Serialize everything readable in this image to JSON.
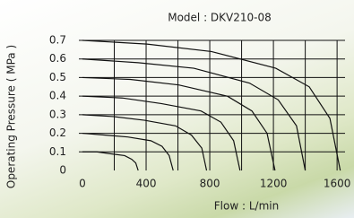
{
  "chart_data": {
    "type": "line",
    "title": "Model : DKV210-08",
    "x_label": "Flow : L/min",
    "y_label": "Operating Pressure ( MPa )",
    "xlim": [
      0,
      1650
    ],
    "xticks": [
      0,
      400,
      800,
      1200,
      1600
    ],
    "xminor": [
      200,
      600,
      1000,
      1400
    ],
    "ylim": [
      0,
      0.7
    ],
    "yticks": [
      0,
      0.1,
      0.2,
      0.3,
      0.4,
      0.5,
      0.6,
      0.7
    ],
    "grid": true,
    "series": [
      {
        "color": "#111111",
        "x": [
          0,
          90,
          175,
          265,
          310,
          335,
          350
        ],
        "values": [
          0.1,
          0.1,
          0.09,
          0.08,
          0.06,
          0.04,
          0
        ]
      },
      {
        "color": "#111111",
        "x": [
          0,
          145,
          285,
          430,
          500,
          545,
          570
        ],
        "values": [
          0.2,
          0.19,
          0.18,
          0.16,
          0.13,
          0.08,
          0
        ]
      },
      {
        "color": "#111111",
        "x": [
          0,
          195,
          390,
          585,
          685,
          750,
          780
        ],
        "values": [
          0.3,
          0.29,
          0.27,
          0.24,
          0.19,
          0.12,
          0
        ]
      },
      {
        "color": "#111111",
        "x": [
          0,
          250,
          495,
          745,
          870,
          950,
          990
        ],
        "values": [
          0.4,
          0.39,
          0.36,
          0.32,
          0.26,
          0.16,
          0
        ]
      },
      {
        "color": "#111111",
        "x": [
          0,
          300,
          605,
          910,
          1065,
          1160,
          1210
        ],
        "values": [
          0.5,
          0.49,
          0.46,
          0.4,
          0.32,
          0.2,
          0
        ]
      },
      {
        "color": "#111111",
        "x": [
          0,
          350,
          700,
          1050,
          1230,
          1345,
          1400
        ],
        "values": [
          0.6,
          0.58,
          0.55,
          0.47,
          0.38,
          0.24,
          0
        ]
      },
      {
        "color": "#111111",
        "x": [
          0,
          405,
          810,
          1215,
          1425,
          1555,
          1620
        ],
        "values": [
          0.7,
          0.68,
          0.64,
          0.55,
          0.45,
          0.28,
          0
        ]
      }
    ]
  }
}
